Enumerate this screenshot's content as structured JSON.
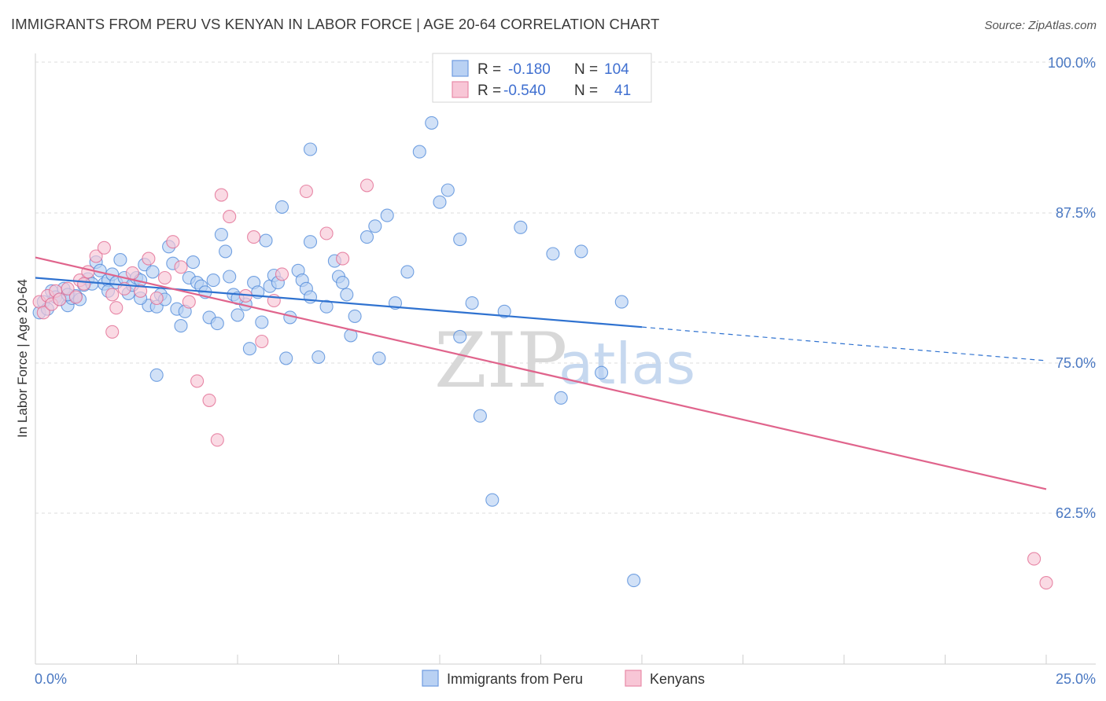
{
  "header": {
    "title": "IMMIGRANTS FROM PERU VS KENYAN IN LABOR FORCE | AGE 20-64 CORRELATION CHART",
    "source": "Source: ZipAtlas.com"
  },
  "watermark": {
    "zip": "ZIP",
    "atlas": "atlas"
  },
  "legend": {
    "rows": [
      {
        "r_label": "R =",
        "r_value": "-0.180",
        "n_label": "N =",
        "n_value": "104",
        "color": "#a9c6f0"
      },
      {
        "r_label": "R =",
        "r_value": "-0.540",
        "n_label": "N =",
        "n_value": "41",
        "color": "#f6b8cc"
      }
    ]
  },
  "bottom_legend": {
    "items": [
      {
        "label": "Immigrants from Peru",
        "color": "#a9c6f0"
      },
      {
        "label": "Kenyans",
        "color": "#f6b8cc"
      }
    ]
  },
  "chart_data": {
    "type": "scatter",
    "ylabel": "In Labor Force | Age 20-64",
    "xlim": [
      0,
      25
    ],
    "ylim": [
      50,
      102
    ],
    "x_tick_labels": [
      {
        "value": 0,
        "label": "0.0%"
      },
      {
        "value": 25,
        "label": "25.0%"
      }
    ],
    "y_tick_labels": [
      {
        "value": 100,
        "label": "100.0%"
      },
      {
        "value": 87.5,
        "label": "87.5%"
      },
      {
        "value": 75,
        "label": "75.0%"
      },
      {
        "value": 62.5,
        "label": "62.5%"
      }
    ],
    "y_gridlines": [
      101,
      88.5,
      76,
      63.5
    ],
    "grid": true,
    "legend_position": "top-center",
    "series": [
      {
        "name": "Immigrants from Peru",
        "color": "#4a86d8",
        "fill": "#b9d1f3",
        "trend": {
          "x": [
            0,
            15
          ],
          "y": [
            82.1,
            78.0
          ],
          "dashed_to": [
            25,
            75.2
          ]
        },
        "points": [
          [
            0.1,
            79.2
          ],
          [
            0.2,
            80.1
          ],
          [
            0.3,
            79.5
          ],
          [
            0.4,
            81.0
          ],
          [
            0.5,
            80.5
          ],
          [
            0.6,
            80.3
          ],
          [
            0.7,
            81.2
          ],
          [
            0.8,
            79.8
          ],
          [
            0.9,
            80.4
          ],
          [
            1.0,
            80.6
          ],
          [
            1.1,
            80.3
          ],
          [
            1.2,
            81.5
          ],
          [
            1.3,
            82.0
          ],
          [
            1.4,
            81.6
          ],
          [
            1.5,
            83.4
          ],
          [
            1.6,
            82.7
          ],
          [
            1.7,
            81.6
          ],
          [
            1.8,
            81.9
          ],
          [
            1.9,
            82.4
          ],
          [
            2.0,
            81.7
          ],
          [
            2.1,
            83.6
          ],
          [
            2.2,
            82.1
          ],
          [
            2.3,
            80.8
          ],
          [
            2.4,
            81.5
          ],
          [
            2.5,
            82.1
          ],
          [
            2.6,
            81.9
          ],
          [
            2.7,
            83.2
          ],
          [
            2.8,
            79.8
          ],
          [
            2.9,
            82.6
          ],
          [
            3.0,
            79.7
          ],
          [
            3.1,
            80.7
          ],
          [
            3.2,
            80.3
          ],
          [
            3.3,
            84.7
          ],
          [
            3.4,
            83.3
          ],
          [
            3.5,
            79.5
          ],
          [
            3.6,
            78.1
          ],
          [
            3.7,
            79.3
          ],
          [
            3.8,
            82.1
          ],
          [
            3.9,
            83.4
          ],
          [
            4.0,
            81.7
          ],
          [
            4.1,
            81.4
          ],
          [
            4.2,
            80.9
          ],
          [
            4.3,
            78.8
          ],
          [
            4.4,
            81.9
          ],
          [
            4.5,
            78.3
          ],
          [
            4.6,
            85.7
          ],
          [
            4.7,
            84.3
          ],
          [
            4.8,
            82.2
          ],
          [
            4.9,
            80.7
          ],
          [
            5.0,
            79.0
          ],
          [
            5.2,
            79.9
          ],
          [
            5.3,
            76.2
          ],
          [
            5.4,
            81.7
          ],
          [
            5.5,
            80.9
          ],
          [
            5.6,
            78.4
          ],
          [
            5.7,
            85.2
          ],
          [
            5.8,
            81.4
          ],
          [
            5.9,
            82.3
          ],
          [
            6.0,
            81.7
          ],
          [
            6.1,
            88.0
          ],
          [
            6.2,
            75.4
          ],
          [
            6.3,
            78.8
          ],
          [
            6.5,
            82.7
          ],
          [
            6.6,
            81.9
          ],
          [
            6.7,
            81.2
          ],
          [
            6.8,
            80.5
          ],
          [
            7.0,
            75.5
          ],
          [
            7.2,
            79.7
          ],
          [
            7.4,
            83.5
          ],
          [
            7.5,
            82.2
          ],
          [
            7.6,
            81.7
          ],
          [
            7.7,
            80.7
          ],
          [
            7.9,
            78.9
          ],
          [
            8.2,
            85.5
          ],
          [
            8.4,
            86.4
          ],
          [
            8.7,
            87.3
          ],
          [
            8.9,
            80.0
          ],
          [
            9.2,
            82.6
          ],
          [
            9.5,
            92.6
          ],
          [
            9.8,
            95.0
          ],
          [
            10.0,
            88.4
          ],
          [
            10.2,
            89.4
          ],
          [
            10.5,
            77.2
          ],
          [
            10.8,
            80.0
          ],
          [
            11.0,
            70.6
          ],
          [
            11.3,
            63.6
          ],
          [
            11.6,
            79.3
          ],
          [
            13.0,
            72.1
          ],
          [
            13.5,
            84.3
          ],
          [
            14.0,
            74.2
          ],
          [
            14.5,
            80.1
          ],
          [
            14.8,
            56.9
          ],
          [
            6.8,
            92.8
          ],
          [
            8.5,
            75.4
          ],
          [
            3.0,
            74.0
          ],
          [
            2.6,
            80.4
          ],
          [
            1.8,
            81.0
          ],
          [
            0.8,
            80.7
          ],
          [
            5.0,
            80.4
          ],
          [
            12.0,
            86.3
          ],
          [
            12.8,
            84.1
          ],
          [
            6.8,
            85.1
          ],
          [
            7.8,
            77.3
          ],
          [
            10.5,
            85.3
          ]
        ]
      },
      {
        "name": "Kenyans",
        "color": "#e0648c",
        "fill": "#f8c6d6",
        "trend": {
          "x": [
            0,
            25
          ],
          "y": [
            83.8,
            64.5
          ]
        },
        "points": [
          [
            0.1,
            80.1
          ],
          [
            0.2,
            79.2
          ],
          [
            0.3,
            80.6
          ],
          [
            0.4,
            79.9
          ],
          [
            0.5,
            81.0
          ],
          [
            0.6,
            80.3
          ],
          [
            0.8,
            81.2
          ],
          [
            1.0,
            80.5
          ],
          [
            1.1,
            81.9
          ],
          [
            1.3,
            82.6
          ],
          [
            1.5,
            83.9
          ],
          [
            1.7,
            84.6
          ],
          [
            1.9,
            80.7
          ],
          [
            2.0,
            79.6
          ],
          [
            2.2,
            81.2
          ],
          [
            2.4,
            82.5
          ],
          [
            2.6,
            81.0
          ],
          [
            2.8,
            83.7
          ],
          [
            3.0,
            80.4
          ],
          [
            3.2,
            82.1
          ],
          [
            3.4,
            85.1
          ],
          [
            3.6,
            83.0
          ],
          [
            3.8,
            80.1
          ],
          [
            4.0,
            73.5
          ],
          [
            4.3,
            71.9
          ],
          [
            4.5,
            68.6
          ],
          [
            4.6,
            89.0
          ],
          [
            4.8,
            87.2
          ],
          [
            5.2,
            80.6
          ],
          [
            5.4,
            85.5
          ],
          [
            5.6,
            76.8
          ],
          [
            6.1,
            82.4
          ],
          [
            6.7,
            89.3
          ],
          [
            7.2,
            85.8
          ],
          [
            7.6,
            83.7
          ],
          [
            8.2,
            89.8
          ],
          [
            1.9,
            77.6
          ],
          [
            24.7,
            58.7
          ],
          [
            25.0,
            56.7
          ],
          [
            1.2,
            81.6
          ],
          [
            5.9,
            80.2
          ]
        ]
      }
    ]
  }
}
